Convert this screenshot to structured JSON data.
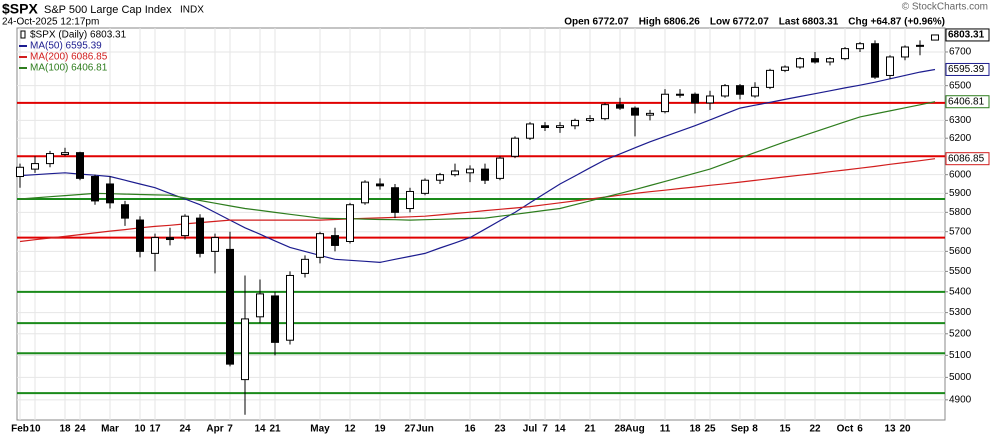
{
  "chart_data": {
    "type": "candlestick",
    "title": "$SPX",
    "subtitle": "S&P 500 Large Cap Index",
    "exchange": "INDX",
    "date": "24-Oct-2025 12:17pm",
    "stats": [
      "Open 6772.07",
      "High 6806.26",
      "Low 6772.07",
      "Last 6803.31",
      "Chg +64.87 (+0.96%)"
    ],
    "credit": "© StockCharts.com",
    "price_name": "$SPX (Daily) 6803.31",
    "color": "#000000",
    "categories": [
      "Feb",
      "10",
      null,
      "18",
      "24",
      null,
      "Mar",
      null,
      "10",
      "17",
      null,
      "24",
      null,
      "Apr",
      "7",
      null,
      "14",
      "21",
      null,
      null,
      "May",
      null,
      "12",
      null,
      "19",
      null,
      "27",
      "Jun",
      null,
      null,
      "16",
      null,
      "23",
      null,
      "Jul",
      "7",
      "14",
      null,
      "21",
      null,
      "28",
      "Aug",
      null,
      "11",
      null,
      "18",
      "25",
      null,
      "Sep",
      "8",
      null,
      "15",
      null,
      "22",
      null,
      "Oct",
      "6",
      null,
      "13",
      "20",
      null,
      null
    ],
    "open": [
      5990,
      6030,
      6060,
      6110,
      6120,
      5990,
      5950,
      5840,
      5760,
      5590,
      5670,
      5680,
      5770,
      5600,
      5610,
      4990,
      5280,
      5380,
      5170,
      5490,
      5570,
      5680,
      5650,
      5850,
      5950,
      5930,
      5820,
      5900,
      5970,
      6000,
      6010,
      6030,
      5980,
      6100,
      6200,
      6270,
      6260,
      6270,
      6300,
      6310,
      6390,
      6370,
      6330,
      6350,
      6450,
      6450,
      6400,
      6440,
      6500,
      6440,
      6490,
      6590,
      6610,
      6660,
      6640,
      6660,
      6720,
      6750,
      6560,
      6670,
      6740,
      6772.07
    ],
    "high": [
      6060,
      6100,
      6130,
      6147,
      6125,
      6000,
      5990,
      5860,
      5780,
      5690,
      5720,
      5790,
      5790,
      5690,
      5700,
      5480,
      5460,
      5400,
      5500,
      5580,
      5700,
      5720,
      5850,
      5970,
      5980,
      5950,
      5930,
      5980,
      6010,
      6060,
      6050,
      6060,
      6100,
      6210,
      6290,
      6290,
      6290,
      6310,
      6330,
      6400,
      6430,
      6380,
      6360,
      6480,
      6480,
      6460,
      6470,
      6510,
      6510,
      6520,
      6600,
      6620,
      6670,
      6700,
      6670,
      6730,
      6760,
      6770,
      6680,
      6740,
      6770,
      6806.26
    ],
    "low": [
      5930,
      6010,
      6040,
      6100,
      5970,
      5840,
      5820,
      5730,
      5570,
      5500,
      5630,
      5660,
      5570,
      5490,
      5050,
      4835,
      5250,
      5100,
      5150,
      5470,
      5540,
      5600,
      5640,
      5840,
      5920,
      5770,
      5800,
      5890,
      5950,
      5990,
      5960,
      5950,
      5970,
      6090,
      6190,
      6240,
      6230,
      6250,
      6290,
      6300,
      6360,
      6210,
      6300,
      6340,
      6430,
      6340,
      6360,
      6430,
      6420,
      6430,
      6480,
      6580,
      6600,
      6630,
      6620,
      6650,
      6700,
      6540,
      6540,
      6650,
      6680,
      6772.07
    ],
    "close": [
      6040,
      6060,
      6115,
      6120,
      5980,
      5860,
      5850,
      5770,
      5600,
      5670,
      5660,
      5780,
      5590,
      5670,
      5060,
      5270,
      5390,
      5160,
      5480,
      5560,
      5690,
      5630,
      5840,
      5960,
      5940,
      5800,
      5910,
      5970,
      6000,
      6020,
      6030,
      5970,
      6090,
      6200,
      6280,
      6260,
      6270,
      6300,
      6310,
      6390,
      6370,
      6330,
      6340,
      6450,
      6450,
      6400,
      6440,
      6500,
      6450,
      6490,
      6590,
      6610,
      6660,
      6640,
      6660,
      6720,
      6750,
      6550,
      6670,
      6730,
      6740,
      6803.31
    ],
    "series": [
      {
        "name": "MA(50) 6595.39",
        "color": "#1c1c8f",
        "values": [
          5995,
          6000,
          6005,
          6010,
          6003,
          5997,
          5990,
          5970,
          5950,
          5930,
          5900,
          5870,
          5840,
          5800,
          5760,
          5720,
          5687,
          5653,
          5620,
          5600,
          5580,
          5560,
          5555,
          5550,
          5545,
          5560,
          5575,
          5590,
          5617,
          5643,
          5670,
          5713,
          5757,
          5800,
          5850,
          5900,
          5950,
          5993,
          6037,
          6080,
          6113,
          6147,
          6180,
          6210,
          6240,
          6270,
          6303,
          6337,
          6370,
          6387,
          6403,
          6420,
          6437,
          6453,
          6470,
          6487,
          6503,
          6520,
          6540,
          6560,
          6580,
          6595.39
        ]
      },
      {
        "name": "MA(200) 6086.85",
        "color": "#d21e1e",
        "values": [
          5650,
          5659,
          5668,
          5676,
          5685,
          5694,
          5703,
          5711,
          5720,
          5727,
          5733,
          5740,
          5747,
          5753,
          5760,
          5760,
          5760,
          5760,
          5760,
          5760,
          5760,
          5763,
          5766,
          5769,
          5771,
          5774,
          5777,
          5780,
          5787,
          5794,
          5801,
          5809,
          5816,
          5823,
          5830,
          5840,
          5850,
          5860,
          5870,
          5880,
          5890,
          5900,
          5909,
          5917,
          5926,
          5934,
          5943,
          5951,
          5960,
          5969,
          5979,
          5988,
          5997,
          6006,
          6016,
          6025,
          6035,
          6045,
          6056,
          6066,
          6076,
          6086.85
        ]
      },
      {
        "name": "MA(100) 6406.81",
        "color": "#2e7d1e",
        "values": [
          5870,
          5876,
          5882,
          5888,
          5894,
          5900,
          5898,
          5896,
          5894,
          5892,
          5890,
          5876,
          5862,
          5848,
          5834,
          5820,
          5810,
          5800,
          5790,
          5780,
          5770,
          5768,
          5767,
          5765,
          5763,
          5762,
          5760,
          5762,
          5764,
          5766,
          5768,
          5770,
          5780,
          5790,
          5800,
          5810,
          5820,
          5840,
          5860,
          5880,
          5900,
          5920,
          5942,
          5964,
          5986,
          6008,
          6030,
          6060,
          6090,
          6120,
          6150,
          6180,
          6208,
          6236,
          6264,
          6292,
          6320,
          6337,
          6354,
          6372,
          6389,
          6406.81
        ]
      }
    ],
    "levels": [
      {
        "value": 6400,
        "color": "#e00000"
      },
      {
        "value": 6100,
        "color": "#e00000"
      },
      {
        "value": 5870,
        "color": "#1a8a1a"
      },
      {
        "value": 5670,
        "color": "#e00000"
      },
      {
        "value": 5400,
        "color": "#1a8a1a"
      },
      {
        "value": 5250,
        "color": "#1a8a1a"
      },
      {
        "value": 5110,
        "color": "#1a8a1a"
      },
      {
        "value": 4930,
        "color": "#1a8a1a"
      }
    ],
    "ylim": [
      4812,
      6846
    ],
    "yticks": [
      4900,
      5000,
      5100,
      5200,
      5300,
      5400,
      5500,
      5600,
      5700,
      5800,
      5900,
      6000,
      6200,
      6300,
      6500,
      6700
    ],
    "log_scale": true,
    "grid": true
  }
}
